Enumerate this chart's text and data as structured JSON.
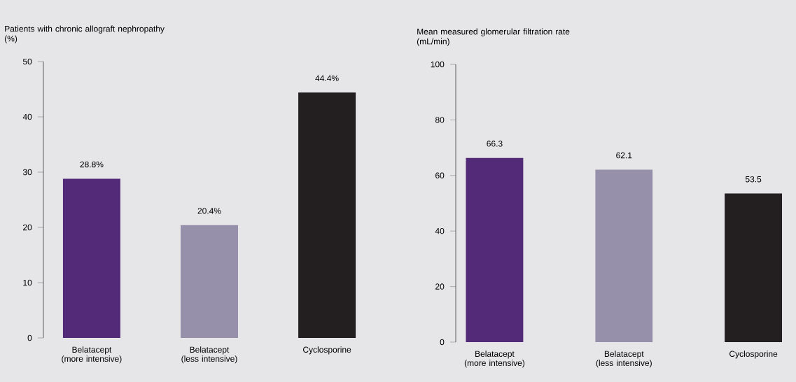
{
  "chart_data": [
    {
      "type": "bar",
      "ylabel": "Patients with chronic allograft nephropathy (%)",
      "categories": [
        "Belatacept (more intensive)",
        "Belatacept (less intensive)",
        "Cyclosporine"
      ],
      "values": [
        28.8,
        20.4,
        44.4
      ],
      "value_labels": [
        "28.8%",
        "20.4%",
        "44.4%"
      ],
      "colors": [
        "#532a78",
        "#9690aa",
        "#231f20"
      ],
      "ylim": [
        0,
        50
      ],
      "yticks": [
        0,
        10,
        20,
        30,
        40,
        50
      ],
      "grid": false,
      "legend": false
    },
    {
      "type": "bar",
      "ylabel": "Mean measured glomerular filtration rate (mL/min)",
      "categories": [
        "Belatacept (more intensive)",
        "Belatacept (less intensive)",
        "Cyclosporine"
      ],
      "values": [
        66.3,
        62.1,
        53.5
      ],
      "data_labels": true,
      "colors": [
        "#532a78",
        "#9690aa",
        "#231f20"
      ],
      "ylim": [
        0,
        100
      ],
      "yticks": [
        0,
        20,
        40,
        60,
        80,
        100
      ],
      "grid": false,
      "legend": false
    }
  ]
}
